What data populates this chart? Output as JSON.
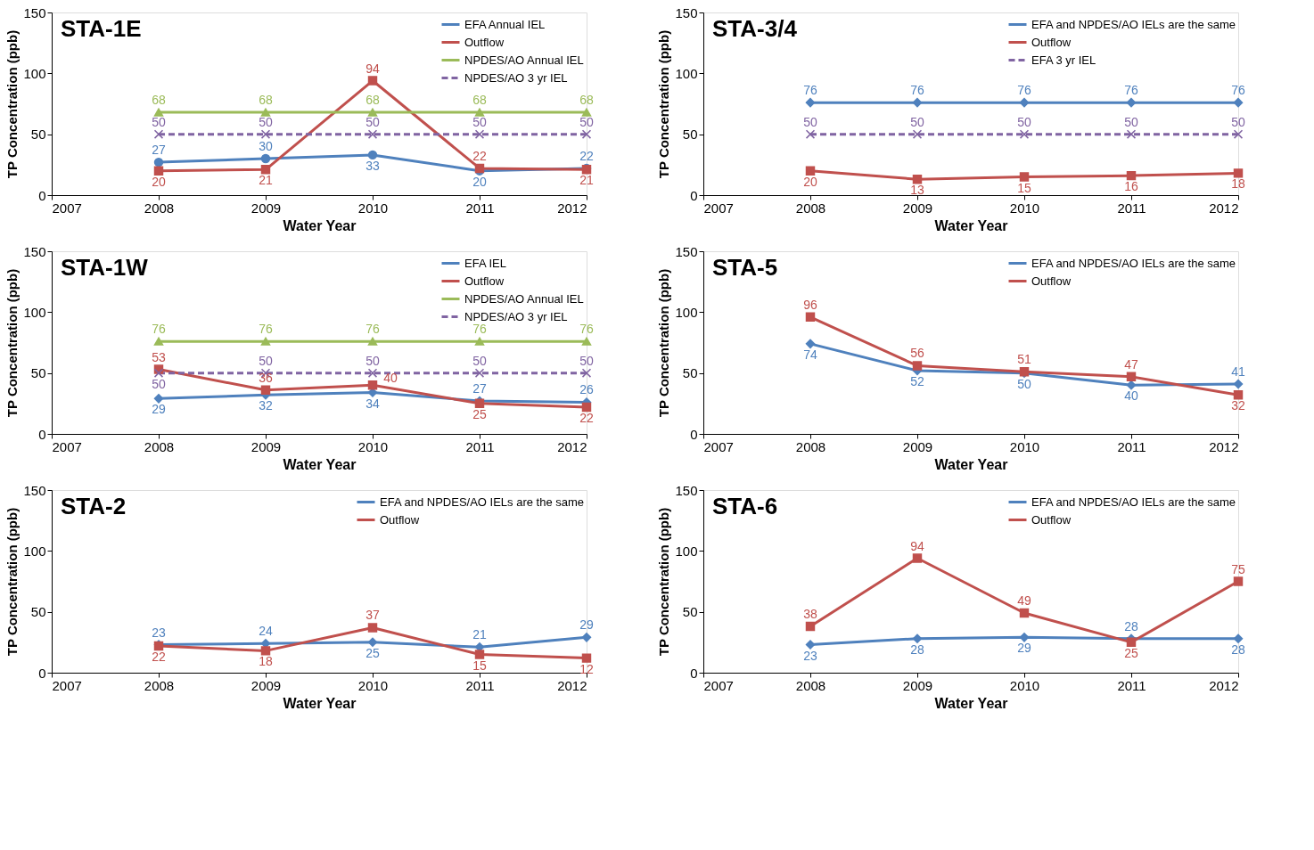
{
  "chart_data": [
    {
      "type": "line",
      "title": "STA-1E",
      "xlabel": "Water Year",
      "ylabel": "TP Concentration (ppb)",
      "x": [
        2008,
        2009,
        2010,
        2011,
        2012
      ],
      "xlim": [
        2007,
        2012
      ],
      "xticks": [
        2007,
        2008,
        2009,
        2010,
        2011,
        2012
      ],
      "ylim": [
        0,
        150
      ],
      "yticks": [
        0,
        50,
        100,
        150
      ],
      "grid": false,
      "legend": "top right",
      "data_labels": true,
      "series": [
        {
          "name": "EFA Annual IEL",
          "color": "#4f81bd",
          "marker": "circle",
          "line_style": "solid",
          "values": [
            27,
            30,
            33,
            20,
            22
          ]
        },
        {
          "name": "Outflow",
          "color": "#c0504d",
          "marker": "square",
          "line_style": "solid",
          "values": [
            20,
            21,
            94,
            22,
            21
          ]
        },
        {
          "name": "NPDES/AO Annual IEL",
          "color": "#9bbb59",
          "marker": "triangle",
          "line_style": "solid",
          "values": [
            68,
            68,
            68,
            68,
            68
          ]
        },
        {
          "name": "NPDES/AO 3 yr IEL",
          "color": "#8064a2",
          "marker": "cross",
          "line_style": "dashed",
          "values": [
            50,
            50,
            50,
            50,
            50
          ]
        }
      ]
    },
    {
      "type": "line",
      "title": "STA-3/4",
      "xlabel": "Water Year",
      "ylabel": "TP Concentration (ppb)",
      "x": [
        2008,
        2009,
        2010,
        2011,
        2012
      ],
      "xlim": [
        2007,
        2012
      ],
      "xticks": [
        2007,
        2008,
        2009,
        2010,
        2011,
        2012
      ],
      "ylim": [
        0,
        150
      ],
      "yticks": [
        0,
        50,
        100,
        150
      ],
      "grid": false,
      "legend": "top right",
      "data_labels": true,
      "series": [
        {
          "name": "EFA and NPDES/AO IELs are the same",
          "color": "#4f81bd",
          "marker": "diamond",
          "line_style": "solid",
          "values": [
            76,
            76,
            76,
            76,
            76
          ]
        },
        {
          "name": "Outflow",
          "color": "#c0504d",
          "marker": "square",
          "line_style": "solid",
          "values": [
            20,
            13,
            15,
            16,
            18
          ]
        },
        {
          "name": "EFA 3 yr IEL",
          "color": "#8064a2",
          "marker": "cross",
          "line_style": "dashed",
          "values": [
            50,
            50,
            50,
            50,
            50
          ]
        }
      ]
    },
    {
      "type": "line",
      "title": "STA-1W",
      "xlabel": "Water Year",
      "ylabel": "TP Concentration (ppb)",
      "x": [
        2008,
        2009,
        2010,
        2011,
        2012
      ],
      "xlim": [
        2007,
        2012
      ],
      "xticks": [
        2007,
        2008,
        2009,
        2010,
        2011,
        2012
      ],
      "ylim": [
        0,
        150
      ],
      "yticks": [
        0,
        50,
        100,
        150
      ],
      "grid": false,
      "legend": "top right",
      "data_labels": true,
      "series": [
        {
          "name": "EFA IEL",
          "color": "#4f81bd",
          "marker": "diamond",
          "line_style": "solid",
          "values": [
            29,
            32,
            34,
            27,
            26
          ]
        },
        {
          "name": "Outflow",
          "color": "#c0504d",
          "marker": "square",
          "line_style": "solid",
          "values": [
            53,
            36,
            40,
            25,
            22
          ]
        },
        {
          "name": "NPDES/AO Annual IEL",
          "color": "#9bbb59",
          "marker": "triangle",
          "line_style": "solid",
          "values": [
            76,
            76,
            76,
            76,
            76
          ]
        },
        {
          "name": "NPDES/AO 3 yr IEL",
          "color": "#8064a2",
          "marker": "cross",
          "line_style": "dashed",
          "values": [
            50,
            50,
            50,
            50,
            50
          ]
        }
      ]
    },
    {
      "type": "line",
      "title": "STA-5",
      "xlabel": "Water Year",
      "ylabel": "TP Concentration (ppb)",
      "x": [
        2008,
        2009,
        2010,
        2011,
        2012
      ],
      "xlim": [
        2007,
        2012
      ],
      "xticks": [
        2007,
        2008,
        2009,
        2010,
        2011,
        2012
      ],
      "ylim": [
        0,
        150
      ],
      "yticks": [
        0,
        50,
        100,
        150
      ],
      "grid": false,
      "legend": "top right",
      "data_labels": true,
      "series": [
        {
          "name": "EFA and NPDES/AO IELs are the same",
          "color": "#4f81bd",
          "marker": "diamond",
          "line_style": "solid",
          "values": [
            74,
            52,
            50,
            40,
            41
          ]
        },
        {
          "name": "Outflow",
          "color": "#c0504d",
          "marker": "square",
          "line_style": "solid",
          "values": [
            96,
            56,
            51,
            47,
            32
          ]
        }
      ]
    },
    {
      "type": "line",
      "title": "STA-2",
      "xlabel": "Water Year",
      "ylabel": "TP Concentration (ppb)",
      "x": [
        2008,
        2009,
        2010,
        2011,
        2012
      ],
      "xlim": [
        2007,
        2012
      ],
      "xticks": [
        2007,
        2008,
        2009,
        2010,
        2011,
        2012
      ],
      "ylim": [
        0,
        150
      ],
      "yticks": [
        0,
        50,
        100,
        150
      ],
      "grid": false,
      "legend": "top right",
      "data_labels": true,
      "series": [
        {
          "name": "EFA and NPDES/AO IELs are the same",
          "color": "#4f81bd",
          "marker": "diamond",
          "line_style": "solid",
          "values": [
            23,
            24,
            25,
            21,
            29
          ]
        },
        {
          "name": "Outflow",
          "color": "#c0504d",
          "marker": "square",
          "line_style": "solid",
          "values": [
            22,
            18,
            37,
            15,
            12
          ]
        }
      ]
    },
    {
      "type": "line",
      "title": "STA-6",
      "xlabel": "Water Year",
      "ylabel": "TP Concentration (ppb)",
      "x": [
        2008,
        2009,
        2010,
        2011,
        2012
      ],
      "xlim": [
        2007,
        2012
      ],
      "xticks": [
        2007,
        2008,
        2009,
        2010,
        2011,
        2012
      ],
      "ylim": [
        0,
        150
      ],
      "yticks": [
        0,
        50,
        100,
        150
      ],
      "grid": false,
      "legend": "top right",
      "data_labels": true,
      "series": [
        {
          "name": "EFA and NPDES/AO IELs are the same",
          "color": "#4f81bd",
          "marker": "diamond",
          "line_style": "solid",
          "values": [
            23,
            28,
            29,
            28,
            28
          ]
        },
        {
          "name": "Outflow",
          "color": "#c0504d",
          "marker": "square",
          "line_style": "solid",
          "values": [
            38,
            94,
            49,
            25,
            75
          ]
        }
      ]
    }
  ]
}
